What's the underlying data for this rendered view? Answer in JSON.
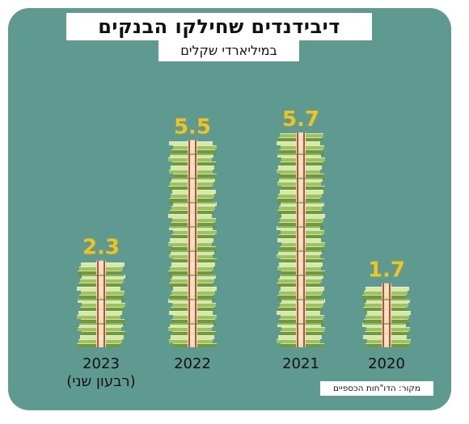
{
  "chart_data": {
    "type": "bar",
    "title": "דיבידנדים שחילקו הבנקים",
    "subtitle": "במיליארדי שקלים",
    "categories": [
      "2023",
      "2022",
      "2021",
      "2020"
    ],
    "category_notes": [
      "(רבעון שני)",
      "",
      "",
      ""
    ],
    "values": [
      2.3,
      5.5,
      5.7,
      1.7
    ],
    "value_labels": [
      "2.3",
      "5.5",
      "5.7",
      "1.7"
    ],
    "ylim": [
      0,
      6
    ],
    "grid": false,
    "legend": "none",
    "source": "מקור: הדו\"חות הכספיים",
    "colors": {
      "background": "#5f9a90",
      "value_text": "#f2c418",
      "money_light": "#d7e9a8",
      "money_mid": "#9ec25c",
      "money_dark": "#6e9a3c",
      "band_red": "#c64a3a",
      "band_cream": "#f3e6c9"
    }
  }
}
